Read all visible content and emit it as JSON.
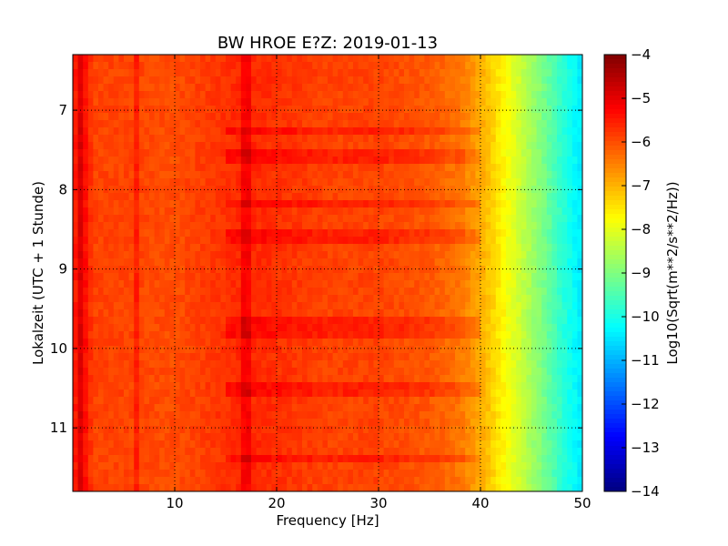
{
  "chart_data": {
    "type": "heatmap",
    "title": "BW HROE E?Z: 2019-01-13",
    "xlabel": "Frequency [Hz]",
    "ylabel": "Lokalzeit (UTC + 1 Stunde)",
    "xlim": [
      0,
      50
    ],
    "ylim_top_to_bottom": [
      6.3,
      11.8
    ],
    "x_ticks": [
      10,
      20,
      30,
      40,
      50
    ],
    "x_tick_labels": [
      "10",
      "20",
      "30",
      "40",
      "50"
    ],
    "y_ticks": [
      7,
      8,
      9,
      10,
      11
    ],
    "y_tick_labels": [
      "7",
      "8",
      "9",
      "10",
      "11"
    ],
    "y_axis_inverted": true,
    "grid": true,
    "colormap": "jet",
    "colorbar": {
      "label": "Log10(Sqrt(m**2/s**2/Hz))",
      "range": [
        -14,
        -4
      ],
      "ticks": [
        -4,
        -5,
        -6,
        -7,
        -8,
        -9,
        -10,
        -11,
        -12,
        -13,
        -14
      ],
      "tick_labels": [
        "−4",
        "−5",
        "−6",
        "−7",
        "−8",
        "−9",
        "−10",
        "−11",
        "−12",
        "−13",
        "−14"
      ]
    },
    "spectrum_profile": {
      "frequency_hz": [
        0,
        1,
        2,
        5,
        10,
        17,
        25,
        30,
        35,
        38,
        40,
        42,
        44,
        46,
        48,
        50
      ],
      "level": [
        -5.6,
        -5.2,
        -5.9,
        -5.9,
        -6.0,
        -5.6,
        -5.9,
        -5.9,
        -6.1,
        -6.4,
        -6.9,
        -7.6,
        -8.3,
        -9.0,
        -9.8,
        -10.5
      ]
    },
    "strong_bands_hz": [
      0.8,
      6.3,
      16.8,
      17.3
    ],
    "strong_time_rows": [
      7.25,
      7.6,
      8.2,
      8.58,
      9.7,
      9.78,
      10.5,
      11.4
    ]
  }
}
